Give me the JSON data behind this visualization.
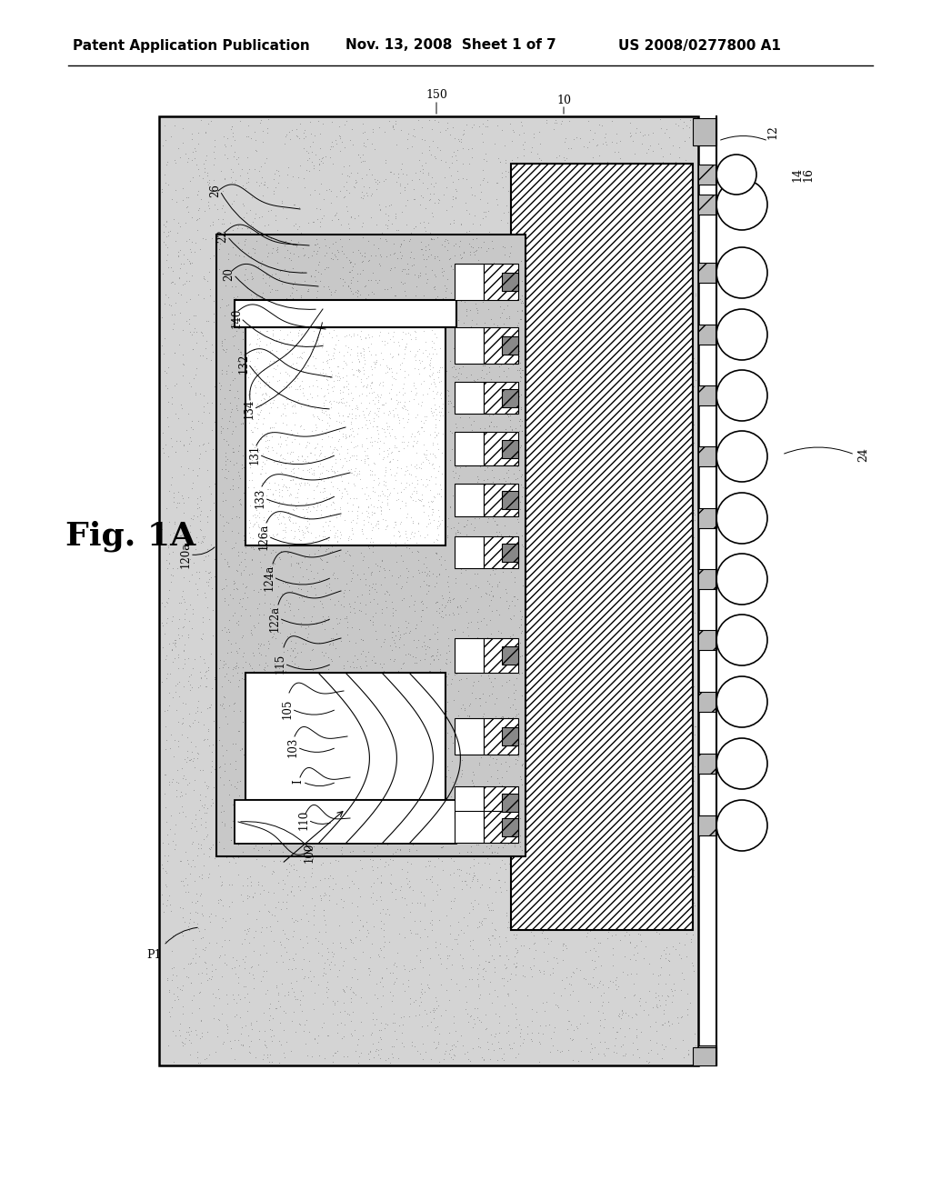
{
  "title_left": "Patent Application Publication",
  "title_mid": "Nov. 13, 2008  Sheet 1 of 7",
  "title_right": "US 2008/0277800 A1",
  "fig_label": "Fig. 1A",
  "bg": "#ffffff",
  "stipple_color": "#aaaaaa",
  "stipple_bg": "#d8d8d8",
  "inner_stipple_bg": "#c8c8c8",
  "hatch_bg": "#ffffff"
}
